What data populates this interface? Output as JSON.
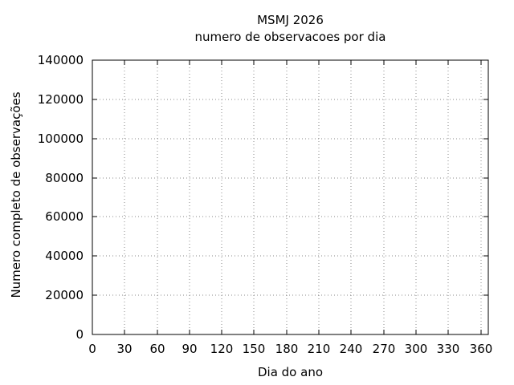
{
  "chart_data": {
    "type": "line",
    "title": "MSMJ 2026",
    "subtitle": "numero de observacoes por dia",
    "xlabel": "Dia do ano",
    "ylabel": "Numero completo de observações",
    "xlim": [
      0,
      367
    ],
    "ylim": [
      0,
      140000
    ],
    "x_ticks": [
      0,
      30,
      60,
      90,
      120,
      150,
      180,
      210,
      240,
      270,
      300,
      330,
      360
    ],
    "y_ticks": [
      0,
      20000,
      40000,
      60000,
      80000,
      100000,
      120000,
      140000
    ],
    "grid": true,
    "grid_style": "dotted",
    "legend": false,
    "series": [],
    "colors": {
      "background": "#ffffff",
      "text": "#000000",
      "border": "#000000",
      "grid": "#8a8a8a"
    }
  }
}
